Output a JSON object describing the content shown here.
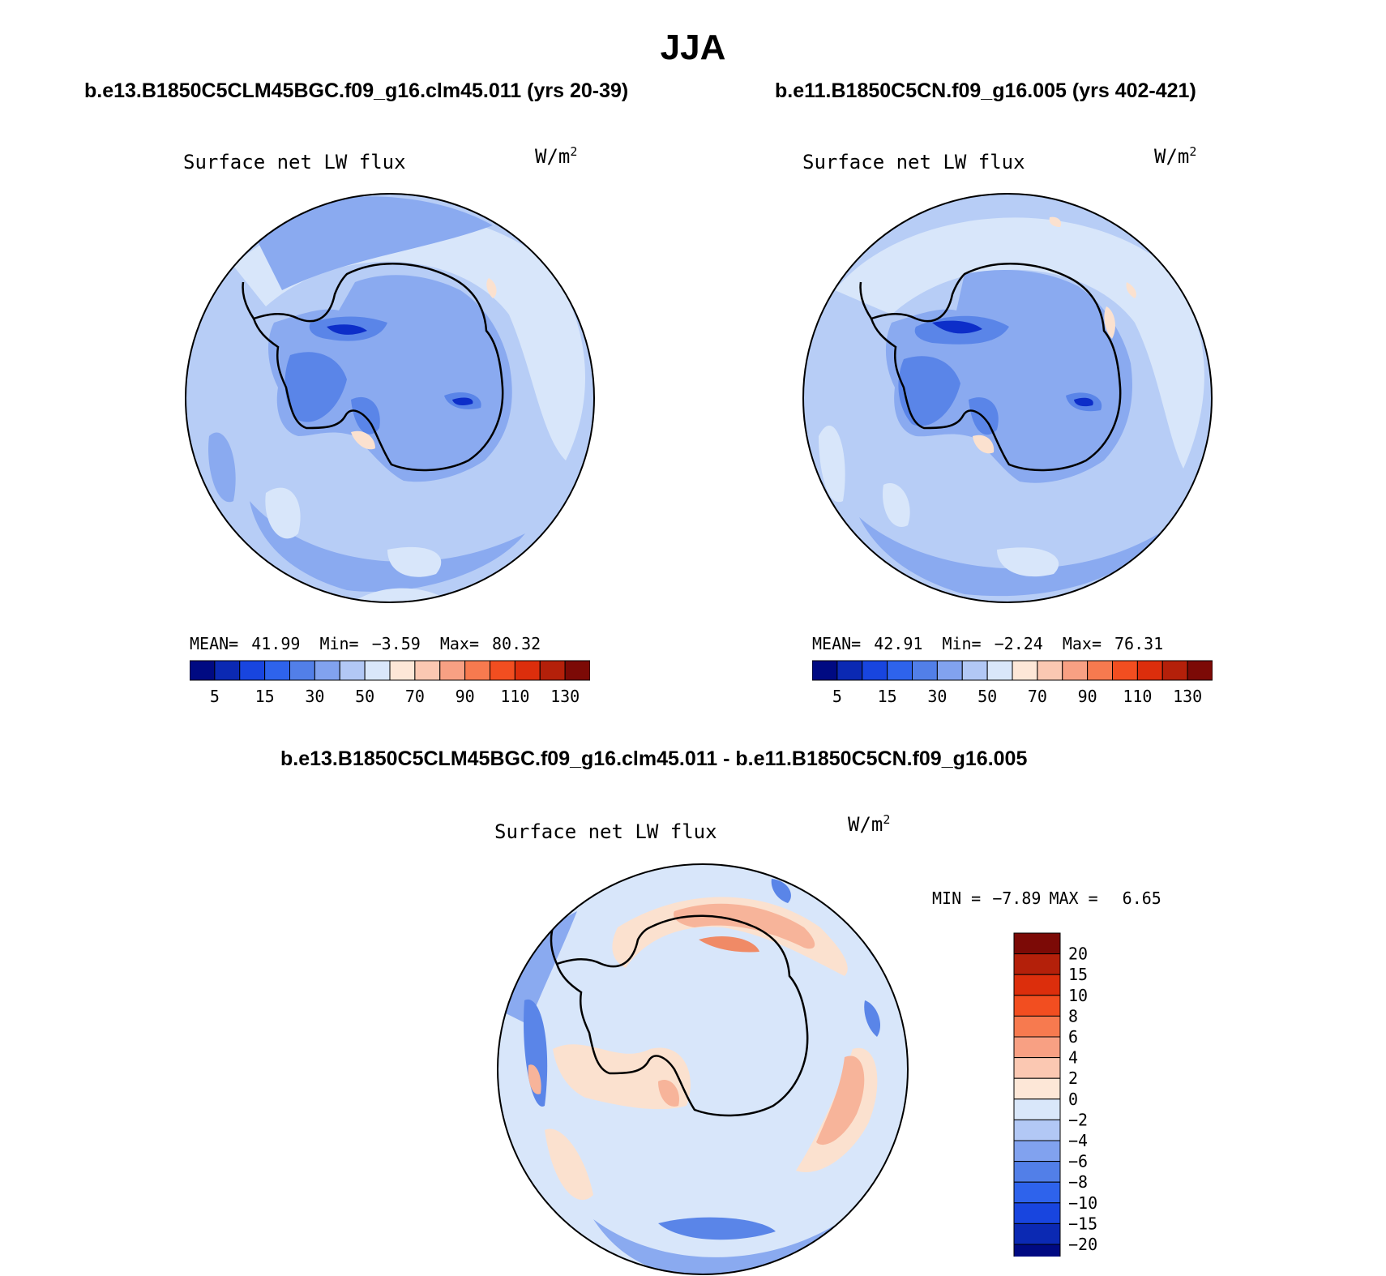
{
  "figure": {
    "season": "JJA",
    "colors": {
      "ocean_light": "#b7cdf6",
      "ocean_pale": "#d8e6fa",
      "mid_blue": "#8aaaf0",
      "blue": "#5a85e8",
      "deep_blue": "#2f5ee0",
      "darkest_blue": "#0d2ec9",
      "peach": "#fbe1cf",
      "salmon": "#f7b49a",
      "coast": "#000000"
    }
  },
  "panels": {
    "left": {
      "case": "b.e13.B1850C5CLM45BGC.f09_g16.clm45.011 (yrs 20-39)",
      "variable": "Surface net LW flux",
      "units_base": "W/m",
      "units_exp": "2",
      "stats": {
        "mean_label": "MEAN=",
        "mean": "41.99",
        "min_label": "Min=",
        "min": "−3.59",
        "max_label": "Max=",
        "max": "80.32"
      }
    },
    "right": {
      "case": "b.e11.B1850C5CN.f09_g16.005 (yrs 402-421)",
      "variable": "Surface net LW flux",
      "units_base": "W/m",
      "units_exp": "2",
      "stats": {
        "mean_label": "MEAN=",
        "mean": "42.91",
        "min_label": "Min=",
        "min": "−2.24",
        "max_label": "Max=",
        "max": "76.31"
      }
    },
    "diff": {
      "case": "b.e13.B1850C5CLM45BGC.f09_g16.clm45.011 - b.e11.B1850C5CN.f09_g16.005",
      "variable": "Surface net LW flux",
      "units_base": "W/m",
      "units_exp": "2",
      "stats": {
        "min_label": "MIN =",
        "min": "−7.89",
        "max_label": "MAX =",
        "max": "6.65"
      }
    }
  },
  "abs_colorbar": {
    "colors": [
      "#000a82",
      "#0b29b3",
      "#1845df",
      "#2e63ec",
      "#527fe8",
      "#81a2ef",
      "#b2c8f5",
      "#d9e7fa",
      "#fde7d7",
      "#fbc8b2",
      "#f8a083",
      "#f77a4f",
      "#f24e20",
      "#dc2e0c",
      "#b4200a",
      "#7c0a06"
    ],
    "tick_labels": [
      "5",
      "15",
      "30",
      "50",
      "70",
      "90",
      "110",
      "130"
    ]
  },
  "diff_colorbar": {
    "colors": [
      "#7c0a06",
      "#b4200a",
      "#dc2e0c",
      "#f24e20",
      "#f77a4f",
      "#f8a083",
      "#fbc8b2",
      "#fde7d7",
      "#d9e7fa",
      "#b2c8f5",
      "#81a2ef",
      "#527fe8",
      "#2e63ec",
      "#1845df",
      "#0b29b3",
      "#000a82"
    ],
    "tick_labels": [
      "20",
      "15",
      "10",
      "8",
      "6",
      "4",
      "2",
      "0",
      "−2",
      "−4",
      "−6",
      "−8",
      "−10",
      "−15",
      "−20"
    ]
  }
}
